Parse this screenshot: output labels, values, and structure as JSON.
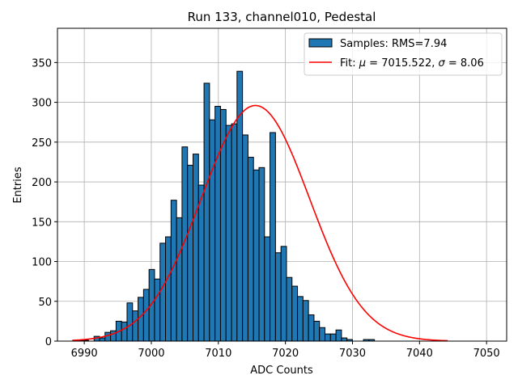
{
  "chart_data": {
    "type": "bar",
    "title": "Run 133, channel010, Pedestal",
    "xlabel": "ADC Counts",
    "ylabel": "Entries",
    "xlim": [
      6986,
      7053
    ],
    "ylim": [
      0,
      393
    ],
    "xticks": [
      6990,
      7000,
      7010,
      7020,
      7030,
      7040,
      7050
    ],
    "yticks": [
      0,
      50,
      100,
      150,
      200,
      250,
      300,
      350
    ],
    "grid": true,
    "legend_position": "top-right",
    "histogram": {
      "name": "Samples: RMS=7.94",
      "color": "#1f77b4",
      "edge_color": "#000000",
      "bin_start": 6989,
      "bin_width": 0.82,
      "counts": [
        1,
        1,
        0,
        6,
        4,
        11,
        13,
        25,
        24,
        48,
        38,
        55,
        65,
        90,
        78,
        123,
        131,
        177,
        155,
        244,
        221,
        235,
        196,
        324,
        278,
        295,
        291,
        271,
        273,
        339,
        259,
        231,
        215,
        218,
        131,
        262,
        111,
        119,
        80,
        69,
        56,
        51,
        33,
        25,
        17,
        9,
        9,
        14,
        4,
        2,
        0,
        0,
        2,
        2
      ]
    },
    "fit": {
      "name": "Fit",
      "mu": 7015.522,
      "sigma": 8.06,
      "amplitude": 296,
      "color": "#ff0000",
      "x_range": [
        6988.2,
        7044.2
      ]
    },
    "legend": {
      "samples_label": "Samples: RMS=7.94",
      "fit_prefix": "Fit: ",
      "mu_symbol": "μ",
      "mu_text": " = 7015.522, ",
      "sigma_symbol": "σ",
      "sigma_text": " = 8.06"
    }
  }
}
